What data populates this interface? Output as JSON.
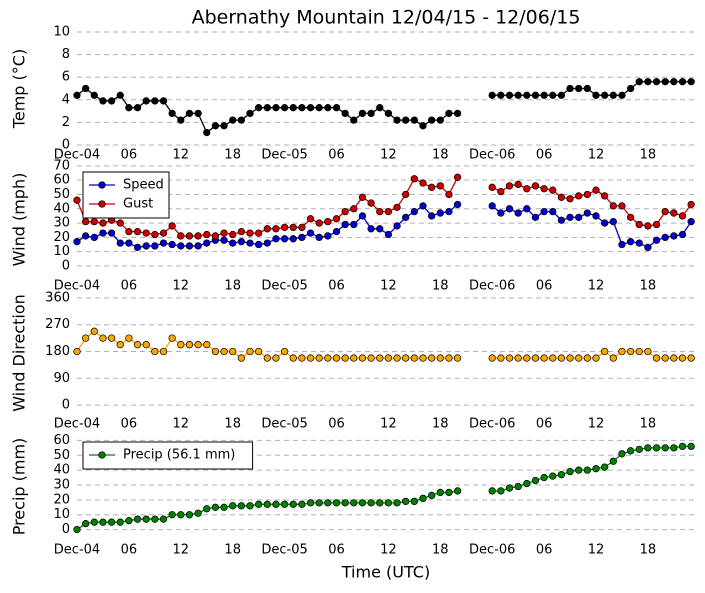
{
  "title": "Abernathy Mountain 12/04/15 - 12/06/15",
  "xlabel": "Time (UTC)",
  "chart_data": [
    {
      "type": "line",
      "ylabel": "Temp (°C)",
      "categories": [
        "Dec-04",
        null,
        null,
        null,
        null,
        null,
        "06",
        null,
        null,
        null,
        null,
        null,
        "12",
        null,
        null,
        null,
        null,
        null,
        "18",
        null,
        null,
        null,
        null,
        null,
        "Dec-05",
        null,
        null,
        null,
        null,
        null,
        "06",
        null,
        null,
        null,
        null,
        null,
        "12",
        null,
        null,
        null,
        null,
        null,
        "18",
        null,
        null,
        null,
        null,
        null,
        "Dec-06",
        null,
        null,
        null,
        null,
        null,
        "06",
        null,
        null,
        null,
        null,
        null,
        "12",
        null,
        null,
        null,
        null,
        null,
        "18",
        null,
        null,
        null,
        null,
        null
      ],
      "ylim": [
        0,
        10
      ],
      "yticks": [
        0,
        2,
        4,
        6,
        8,
        10
      ],
      "grid": true,
      "series": [
        {
          "name": "Temp",
          "color": "#000000",
          "values": [
            4.4,
            5.0,
            4.4,
            3.9,
            3.9,
            4.4,
            3.3,
            3.3,
            3.9,
            3.9,
            3.9,
            2.8,
            2.2,
            2.8,
            2.8,
            1.1,
            1.7,
            1.7,
            2.2,
            2.2,
            2.8,
            3.3,
            3.3,
            3.3,
            3.3,
            3.3,
            3.3,
            3.3,
            3.3,
            3.3,
            3.3,
            2.8,
            2.2,
            2.8,
            2.8,
            3.3,
            2.8,
            2.2,
            2.2,
            2.2,
            1.7,
            2.2,
            2.2,
            2.8,
            2.8,
            null,
            null,
            null,
            4.4,
            4.4,
            4.4,
            4.4,
            4.4,
            4.4,
            4.4,
            4.4,
            4.4,
            5.0,
            5.0,
            5.0,
            4.4,
            4.4,
            4.4,
            4.4,
            5.0,
            5.6,
            5.6,
            5.6,
            5.6,
            5.6,
            5.6,
            5.6
          ]
        }
      ]
    },
    {
      "type": "line",
      "ylabel": "Wind (mph)",
      "legend": "upper left",
      "categories": [
        "Dec-04",
        null,
        null,
        null,
        null,
        null,
        "06",
        null,
        null,
        null,
        null,
        null,
        "12",
        null,
        null,
        null,
        null,
        null,
        "18",
        null,
        null,
        null,
        null,
        null,
        "Dec-05",
        null,
        null,
        null,
        null,
        null,
        "06",
        null,
        null,
        null,
        null,
        null,
        "12",
        null,
        null,
        null,
        null,
        null,
        "18",
        null,
        null,
        null,
        null,
        null,
        "Dec-06",
        null,
        null,
        null,
        null,
        null,
        "06",
        null,
        null,
        null,
        null,
        null,
        "12",
        null,
        null,
        null,
        null,
        null,
        "18",
        null,
        null,
        null,
        null,
        null
      ],
      "ylim": [
        -7,
        72
      ],
      "yticks": [
        0,
        10,
        20,
        30,
        40,
        50,
        60,
        70
      ],
      "grid": true,
      "series": [
        {
          "name": "Speed",
          "color": "#0000cc",
          "values": [
            17,
            21,
            20,
            23,
            23,
            16,
            16,
            13,
            14,
            14,
            16,
            15,
            14,
            14,
            14,
            16,
            18,
            18,
            16,
            17,
            16,
            15,
            16,
            19,
            19,
            19,
            20,
            23,
            20,
            21,
            24,
            29,
            29,
            35,
            26,
            26,
            22,
            28,
            34,
            38,
            42,
            35,
            37,
            38,
            43,
            null,
            null,
            null,
            42,
            37,
            40,
            37,
            40,
            34,
            38,
            38,
            32,
            34,
            34,
            37,
            35,
            30,
            31,
            15,
            17,
            16,
            13,
            18,
            20,
            21,
            22,
            31
          ]
        },
        {
          "name": "Gust",
          "color": "#cc0000",
          "values": [
            46,
            31,
            31,
            30,
            32,
            30,
            24,
            24,
            23,
            22,
            23,
            28,
            21,
            21,
            21,
            22,
            21,
            23,
            22,
            24,
            23,
            23,
            26,
            26,
            27,
            27,
            27,
            33,
            30,
            31,
            33,
            38,
            40,
            48,
            44,
            38,
            38,
            41,
            50,
            61,
            58,
            55,
            56,
            50,
            62,
            null,
            null,
            null,
            55,
            52,
            56,
            57,
            54,
            56,
            54,
            53,
            48,
            47,
            49,
            50,
            53,
            49,
            42,
            42,
            34,
            29,
            28,
            29,
            38,
            37,
            35,
            43
          ]
        }
      ]
    },
    {
      "type": "line",
      "ylabel": "Wind Direction",
      "categories": [
        "Dec-04",
        null,
        null,
        null,
        null,
        null,
        "06",
        null,
        null,
        null,
        null,
        null,
        "12",
        null,
        null,
        null,
        null,
        null,
        "18",
        null,
        null,
        null,
        null,
        null,
        "Dec-05",
        null,
        null,
        null,
        null,
        null,
        "06",
        null,
        null,
        null,
        null,
        null,
        "12",
        null,
        null,
        null,
        null,
        null,
        "18",
        null,
        null,
        null,
        null,
        null,
        "Dec-06",
        null,
        null,
        null,
        null,
        null,
        "06",
        null,
        null,
        null,
        null,
        null,
        "12",
        null,
        null,
        null,
        null,
        null,
        "18",
        null,
        null,
        null,
        null,
        null
      ],
      "ylim": [
        -30,
        380
      ],
      "yticks": [
        0,
        90,
        180,
        270,
        360
      ],
      "grid": true,
      "series": [
        {
          "name": "Direction",
          "color": "#ffa500",
          "values": [
            180,
            225,
            248,
            225,
            225,
            203,
            225,
            203,
            203,
            180,
            180,
            225,
            203,
            203,
            203,
            203,
            180,
            180,
            180,
            158,
            180,
            180,
            158,
            158,
            180,
            158,
            158,
            158,
            158,
            158,
            158,
            158,
            158,
            158,
            158,
            158,
            158,
            158,
            158,
            158,
            158,
            158,
            158,
            158,
            158,
            null,
            null,
            null,
            158,
            158,
            158,
            158,
            158,
            158,
            158,
            158,
            158,
            158,
            158,
            158,
            158,
            180,
            158,
            180,
            180,
            180,
            180,
            158,
            158,
            158,
            158,
            158
          ]
        }
      ]
    },
    {
      "type": "line",
      "ylabel": "Precip (mm)",
      "legend": "upper left",
      "categories": [
        "Dec-04",
        null,
        null,
        null,
        null,
        null,
        "06",
        null,
        null,
        null,
        null,
        null,
        "12",
        null,
        null,
        null,
        null,
        null,
        "18",
        null,
        null,
        null,
        null,
        null,
        "Dec-05",
        null,
        null,
        null,
        null,
        null,
        "06",
        null,
        null,
        null,
        null,
        null,
        "12",
        null,
        null,
        null,
        null,
        null,
        "18",
        null,
        null,
        null,
        null,
        null,
        "Dec-06",
        null,
        null,
        null,
        null,
        null,
        "06",
        null,
        null,
        null,
        null,
        null,
        "12",
        null,
        null,
        null,
        null,
        null,
        "18",
        null,
        null,
        null,
        null,
        null
      ],
      "ylim": [
        -7,
        65
      ],
      "yticks": [
        0,
        10,
        20,
        30,
        40,
        50,
        60
      ],
      "grid": true,
      "series": [
        {
          "name": "Precip (56.1 mm)",
          "color": "#008000",
          "values": [
            0,
            4,
            5,
            5,
            5,
            5,
            6,
            7,
            7,
            7,
            7,
            10,
            10,
            10,
            11,
            14,
            15,
            15,
            16,
            16,
            16,
            17,
            17,
            17,
            17,
            17,
            17,
            18,
            18,
            18,
            18,
            18,
            18,
            18,
            18,
            18,
            18,
            18,
            19,
            19,
            21,
            23,
            25,
            25,
            26,
            null,
            null,
            null,
            26,
            26,
            28,
            29,
            31,
            33,
            35,
            36,
            37,
            39,
            40,
            40,
            41,
            42,
            46,
            51,
            53,
            54,
            55,
            55,
            55,
            55,
            56,
            56
          ]
        }
      ]
    }
  ]
}
